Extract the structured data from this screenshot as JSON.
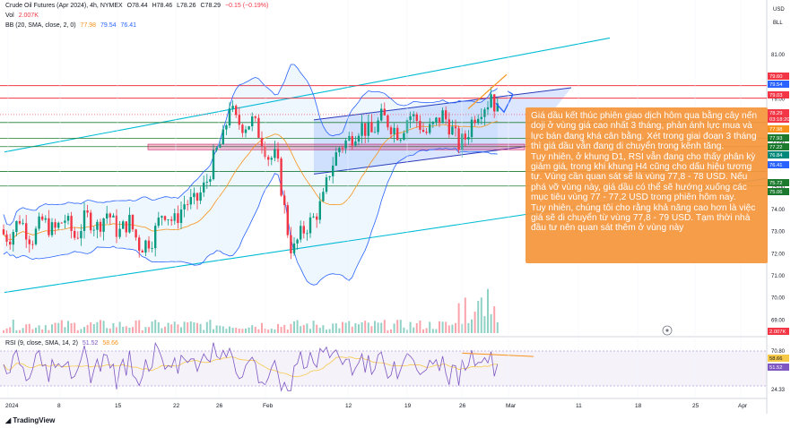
{
  "header": {
    "symbol": "Crude Oil Futures (Apr 2024), 4h, NYMEX",
    "ohlc": [
      "O78.44",
      "H78.46",
      "L78.26",
      "C78.29"
    ],
    "change": "−0.15 (−0.19%)",
    "vol_label": "Vol",
    "vol_value": "2.007K",
    "bb_label": "BB (20, SMA, close, 2, 0)",
    "bb_values": [
      "77.98",
      "79.54",
      "76.41"
    ]
  },
  "currency": {
    "code": "USD",
    "unit": "BLL"
  },
  "rsi_header": {
    "label": "RSI (9, close, SMA, 14, 2)",
    "values": [
      "51.52",
      "58.66"
    ]
  },
  "annotation": {
    "paragraphs": [
      "Giá dầu kết thúc phiên giao dịch hôm qua bằng cây nến doji ở vùng giá cao nhất 3 tháng, phản ánh lực mua và lực bán đang khá cân bằng. Xét trong giai đoạn 3 tháng thì giá dầu vẫn đang di chuyển trong kênh tăng.",
      "Tuy nhiên, ở khung D1, RSI vẫn đang cho thấy phân kỳ giảm giá, trong khi khung H4 cũng cho dấu hiệu tương tự. Vùng cần quan sát sẽ là vùng 77,8 - 78 USD. Nếu phá vỡ vùng này, giá dầu có thể sẽ hướng xuống các mục tiêu vùng 77 - 77,2 USD trong phiên hôm nay.",
      "Tuy nhiên, chúng tôi cho rằng khả năng cao hơn là việc  giá sẽ di chuyển từ vùng 77,8 - 79 USD. Tạm thời nhà đầu tư nên quan sát thêm ở vùng này"
    ]
  },
  "brand": "TradingView",
  "chart_data": {
    "type": "candlestick",
    "title": "Crude Oil Futures (Apr 2024), 4h, NYMEX",
    "ylim": [
      68.5,
      82.5
    ],
    "y_ticks": [
      "81.00",
      "80.00",
      "79.00",
      "78.00",
      "77.00",
      "76.00",
      "75.00",
      "74.00",
      "73.00",
      "72.00",
      "71.00",
      "70.00",
      "69.00"
    ],
    "x_ticks": [
      "2024",
      "8",
      "15",
      "22",
      "26",
      "Feb",
      "12",
      "19",
      "26",
      "Mar",
      "11",
      "18",
      "25",
      "Apr"
    ],
    "price_labels": [
      {
        "text": "79.60",
        "color": "#f23645"
      },
      {
        "text": "79.54",
        "color": "#2962ff"
      },
      {
        "text": "79.03",
        "color": "#f23645"
      },
      {
        "text": "78.29",
        "color": "#ffffff"
      },
      {
        "text": "03:18:20",
        "color": "#ffffff"
      },
      {
        "text": "77.98",
        "color": "#f7931a"
      },
      {
        "text": "77.93",
        "color": "#1b7a2e"
      },
      {
        "text": "77.22",
        "color": "#1b7a2e"
      },
      {
        "text": "76.84",
        "color": "#00897b"
      },
      {
        "text": "76.41",
        "color": "#2962ff"
      },
      {
        "text": "75.72",
        "color": "#1b7a2e"
      },
      {
        "text": "75.06",
        "color": "#1b7a2e"
      }
    ],
    "vol_label": "2.007K",
    "rsi_ticks": [
      "70.80",
      "24.33"
    ],
    "rsi_labels": [
      {
        "text": "58.66",
        "color": "#f7c948"
      },
      {
        "text": "51.52",
        "color": "#7e57c2"
      }
    ],
    "horizontal_levels": {
      "resistance": [
        79.6,
        79.03
      ],
      "support": [
        77.93,
        77.22,
        76.84,
        75.72,
        75.06
      ]
    },
    "support_zone": [
      76.7,
      76.95
    ],
    "colors": {
      "up": "#089981",
      "down": "#f23645",
      "bb": "#2962ff",
      "basis": "#f7931a",
      "channel": "#00bcd4",
      "rsi": "#7e57c2",
      "rsi_ma": "#f7c948"
    }
  }
}
